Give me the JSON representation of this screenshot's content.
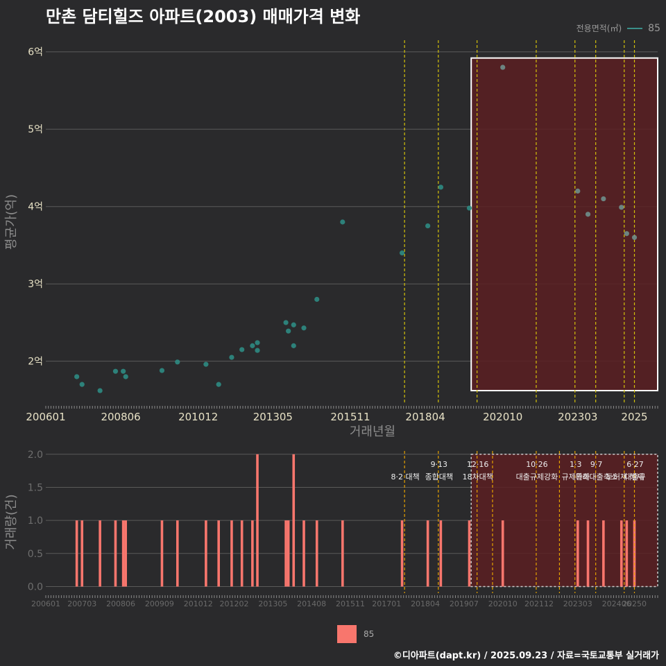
{
  "title": "만촌 담티힐즈 아파트(2003) 매매가격 변화",
  "footer": "©디아파트(dapt.kr) / 2025.09.23 / 자료=국토교통부 실거래가",
  "legend_top": {
    "label": "전용면적(㎡)",
    "value": "85"
  },
  "legend_bottom": {
    "value": "85"
  },
  "colors": {
    "background": "#2a2a2c",
    "grid": "#5a5a5a",
    "point": "#2e8b83",
    "bar": "#f8766d",
    "vline": "#d4c20a",
    "vline_orange": "#e5a100",
    "highlight_fill": "#5a1e22",
    "highlight_border": "#ffffff"
  },
  "chart_data": [
    {
      "type": "scatter",
      "title": "만촌 담티힐즈 아파트(2003) 매매가격 변화",
      "xlabel": "거래년월",
      "ylabel": "평균가(억)",
      "xlim": [
        2006.0,
        2025.75
      ],
      "ylim": [
        1.45,
        6.15
      ],
      "x_ticks": [
        2006.0,
        2008.42,
        2010.92,
        2013.33,
        2015.83,
        2018.25,
        2020.75,
        2023.17,
        2025.0
      ],
      "x_tick_labels": [
        "200601",
        "200806",
        "201012",
        "201305",
        "201511",
        "201804",
        "202010",
        "202303",
        "2025"
      ],
      "y_ticks": [
        2,
        3,
        4,
        5,
        6
      ],
      "y_tick_labels": [
        "2억",
        "3억",
        "4억",
        "5억",
        "6억"
      ],
      "series": [
        {
          "name": "85",
          "x": [
            2007.0,
            2007.17,
            2007.75,
            2008.25,
            2008.5,
            2008.58,
            2009.75,
            2010.25,
            2011.17,
            2011.58,
            2012.0,
            2012.33,
            2012.67,
            2012.83,
            2012.83,
            2013.75,
            2013.83,
            2014.0,
            2014.0,
            2014.33,
            2014.75,
            2015.58,
            2017.5,
            2018.33,
            2018.75,
            2019.67,
            2020.75,
            2023.17,
            2023.5,
            2024.0,
            2024.58,
            2024.75,
            2025.0
          ],
          "y": [
            1.8,
            1.7,
            1.62,
            1.87,
            1.87,
            1.8,
            1.88,
            1.99,
            1.96,
            1.7,
            2.05,
            2.15,
            2.2,
            2.24,
            2.14,
            2.5,
            2.39,
            2.47,
            2.2,
            2.43,
            2.8,
            3.8,
            3.4,
            3.75,
            4.25,
            3.98,
            5.8,
            4.2,
            3.9,
            4.1,
            3.99,
            3.65,
            3.6
          ]
        }
      ],
      "policy_lines": [
        2017.58,
        2018.67,
        2019.92,
        2021.83,
        2023.08,
        2023.75,
        2024.67,
        2025.0
      ],
      "highlight_region": {
        "from": 2020.0,
        "to": 2025.75
      }
    },
    {
      "type": "bar",
      "xlabel": "",
      "ylabel": "거래량(건)",
      "xlim": [
        2006.0,
        2025.75
      ],
      "ylim": [
        -0.1,
        2.05
      ],
      "y_ticks": [
        0.0,
        0.5,
        1.0,
        1.5,
        2.0
      ],
      "y_tick_labels": [
        "0.0",
        "0.5",
        "1.0",
        "1.5",
        "2.0"
      ],
      "x_ticks": [
        2006.0,
        2007.17,
        2008.42,
        2009.67,
        2010.92,
        2012.08,
        2013.33,
        2014.58,
        2015.83,
        2017.0,
        2018.25,
        2019.5,
        2020.75,
        2021.92,
        2023.17,
        2024.42,
        2025.0
      ],
      "x_tick_labels": [
        "200601",
        "200703",
        "200806",
        "200909",
        "201012",
        "201202",
        "201305",
        "201408",
        "201511",
        "201701",
        "201804",
        "201907",
        "202010",
        "202112",
        "202303",
        "202406",
        "20250"
      ],
      "series": [
        {
          "name": "85",
          "x": [
            2007.0,
            2007.17,
            2007.75,
            2008.25,
            2008.5,
            2008.58,
            2009.75,
            2010.25,
            2011.17,
            2011.58,
            2012.0,
            2012.33,
            2012.67,
            2012.83,
            2013.75,
            2013.83,
            2014.0,
            2014.33,
            2014.75,
            2015.58,
            2017.5,
            2018.33,
            2018.75,
            2019.67,
            2020.75,
            2023.17,
            2023.5,
            2024.0,
            2024.58,
            2024.75,
            2025.0
          ],
          "values": [
            1,
            1,
            1,
            1,
            1,
            1,
            1,
            1,
            1,
            1,
            1,
            1,
            1,
            2,
            1,
            1,
            2,
            1,
            1,
            1,
            1,
            1,
            1,
            1,
            1,
            1,
            1,
            1,
            1,
            1,
            1
          ]
        }
      ],
      "policy_lines": [
        {
          "x": 2017.58,
          "date": "",
          "label": "8·2 대책",
          "color": "orange"
        },
        {
          "x": 2018.67,
          "date": "9·13",
          "label": "종합대책",
          "color": "orange"
        },
        {
          "x": 2019.92,
          "date": "12·16",
          "label": "18차대책",
          "color": "orange"
        },
        {
          "x": 2020.42,
          "date": "",
          "label": "",
          "color": "orange"
        },
        {
          "x": 2021.83,
          "date": "10·26",
          "label": "대출규제강화",
          "color": "orange"
        },
        {
          "x": 2022.58,
          "date": "",
          "label": "",
          "color": "orange"
        },
        {
          "x": 2023.08,
          "date": "1·3",
          "label": "규제완화",
          "color": "orange"
        },
        {
          "x": 2023.75,
          "date": "9·7",
          "label": "특례대출축소",
          "color": "orange"
        },
        {
          "x": 2024.67,
          "date": "",
          "label": "토허제 해제",
          "color": "orange"
        },
        {
          "x": 2025.0,
          "date": "6·27",
          "label": "대출규",
          "color": "orange"
        }
      ],
      "highlight_region": {
        "from": 2020.0,
        "to": 2025.75
      }
    }
  ]
}
